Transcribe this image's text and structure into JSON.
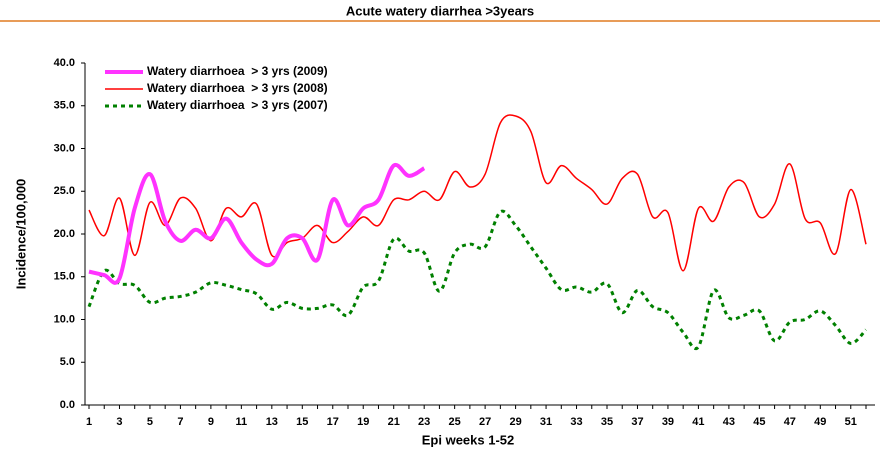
{
  "chart_data": {
    "type": "line",
    "title": "Acute watery diarrhea >3years",
    "x_label": "Epi weeks 1-52",
    "y_label": "Incidence/100,000",
    "categories": [
      "1",
      null,
      "3",
      null,
      "5",
      null,
      "7",
      null,
      "9",
      null,
      "11",
      null,
      "13",
      null,
      "15",
      null,
      "17",
      null,
      "19",
      null,
      "21",
      null,
      "23",
      null,
      "25",
      null,
      "27",
      null,
      "29",
      null,
      "31",
      null,
      "33",
      null,
      "35",
      null,
      "37",
      null,
      "39",
      null,
      "41",
      null,
      "43",
      null,
      "45",
      null,
      "47",
      null,
      "49",
      null,
      "51",
      null
    ],
    "series": [
      {
        "name": "Watery diarrhoea  > 3 yrs (2009)",
        "color": "#ff33ff",
        "style": "solid-thick",
        "values": [
          15.6,
          15.2,
          14.8,
          23,
          27,
          21.5,
          19.2,
          20.5,
          19.5,
          21.8,
          19,
          17,
          16.5,
          19.5,
          19.5,
          17,
          24,
          21,
          23,
          24,
          28,
          26.8,
          27.7,
          null,
          null,
          null,
          null,
          null,
          null,
          null,
          null,
          null,
          null,
          null,
          null,
          null,
          null,
          null,
          null,
          null,
          null,
          null,
          null,
          null,
          null,
          null,
          null,
          null,
          null,
          null,
          null,
          null
        ]
      },
      {
        "name": "Watery diarrhoea  > 3 yrs (2008)",
        "color": "#ff0000",
        "style": "solid",
        "values": [
          22.8,
          19.8,
          24.2,
          17.5,
          23.7,
          21,
          24.2,
          23,
          19.2,
          23,
          22,
          23.5,
          17.5,
          19,
          19.5,
          21,
          19,
          20.3,
          22,
          21,
          24,
          24,
          25,
          24,
          27.3,
          25.5,
          27,
          33,
          33.8,
          32,
          26,
          28,
          26.5,
          25.2,
          23.5,
          26.5,
          27,
          22,
          22.5,
          15.7,
          23,
          21.5,
          25.5,
          26,
          22,
          23.5,
          28.2,
          21.8,
          21.3,
          17.7,
          25.2,
          18.8
        ]
      },
      {
        "name": "Watery diarrhoea  > 3 yrs (2007)",
        "color": "#008000",
        "style": "dashed",
        "values": [
          11.5,
          15.7,
          14.2,
          14,
          12,
          12.5,
          12.7,
          13.2,
          14.3,
          14,
          13.5,
          13,
          11.2,
          12,
          11.3,
          11.3,
          11.7,
          10.5,
          13.8,
          14.5,
          19.4,
          18,
          17.8,
          13.3,
          17.8,
          18.8,
          18.5,
          22.6,
          21,
          18.5,
          16,
          13.5,
          13.8,
          13.2,
          14.2,
          10.8,
          13.4,
          11.5,
          10.8,
          8.5,
          6.8,
          13.4,
          10.2,
          10.5,
          11,
          7.5,
          9.7,
          10,
          11,
          9.3,
          7.2,
          8.8
        ]
      }
    ],
    "ylim": [
      0,
      40
    ],
    "yticks": [
      {
        "value": 0,
        "label": "0.0"
      },
      {
        "value": 5,
        "label": "5.0"
      },
      {
        "value": 10,
        "label": "10.0"
      },
      {
        "value": 15,
        "label": "15.0"
      },
      {
        "value": 20,
        "label": "20.0"
      },
      {
        "value": 25,
        "label": "25.0"
      },
      {
        "value": 30,
        "label": "30.0"
      },
      {
        "value": 35,
        "label": "35.0"
      },
      {
        "value": 40,
        "label": "40.0"
      }
    ],
    "grid": false,
    "legend": "upper-left"
  }
}
